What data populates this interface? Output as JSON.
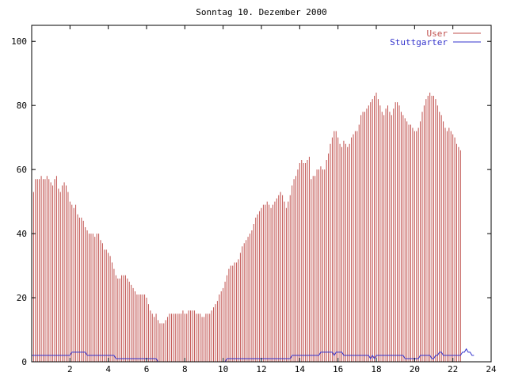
{
  "chart_data": {
    "type": "bar",
    "title": "Sonntag 10. Dezember 2000",
    "xlabel": "",
    "ylabel": "",
    "xlim": [
      0,
      24
    ],
    "ylim": [
      0,
      105
    ],
    "x_ticks": [
      "2",
      "4",
      "6",
      "8",
      "10",
      "12",
      "14",
      "16",
      "18",
      "20",
      "22",
      "24"
    ],
    "y_ticks": [
      "0",
      "20",
      "40",
      "60",
      "80",
      "100"
    ],
    "grid": false,
    "legend_position": "top-right",
    "interval_hours": 0.1,
    "series": [
      {
        "name": "User",
        "kind": "impulse",
        "color": "#c0504d",
        "values": [
          53,
          53,
          57,
          57,
          57,
          58,
          57,
          57,
          58,
          57,
          56,
          55,
          57,
          58,
          54,
          53,
          55,
          56,
          55,
          53,
          50,
          49,
          48,
          49,
          46,
          45,
          45,
          44,
          42,
          41,
          40,
          40,
          40,
          39,
          40,
          40,
          38,
          37,
          35,
          35,
          34,
          33,
          31,
          29,
          27,
          26,
          26,
          27,
          27,
          27,
          26,
          25,
          24,
          23,
          22,
          21,
          21,
          21,
          21,
          21,
          20,
          18,
          16,
          15,
          14,
          15,
          13,
          12,
          12,
          12,
          13,
          14,
          15,
          15,
          15,
          15,
          15,
          15,
          15,
          16,
          15,
          15,
          16,
          16,
          16,
          16,
          15,
          15,
          15,
          14,
          14,
          15,
          15,
          15,
          16,
          17,
          18,
          19,
          21,
          22,
          23,
          25,
          27,
          29,
          30,
          30,
          31,
          31,
          32,
          34,
          36,
          37,
          38,
          39,
          40,
          41,
          43,
          45,
          46,
          47,
          48,
          49,
          49,
          50,
          49,
          48,
          49,
          50,
          51,
          52,
          53,
          52,
          50,
          48,
          50,
          52,
          55,
          57,
          58,
          60,
          62,
          63,
          62,
          62,
          63,
          64,
          57,
          58,
          58,
          60,
          60,
          61,
          60,
          60,
          63,
          65,
          68,
          70,
          72,
          72,
          70,
          68,
          67,
          69,
          68,
          67,
          68,
          70,
          71,
          72,
          72,
          74,
          77,
          78,
          78,
          79,
          80,
          81,
          82,
          83,
          84,
          82,
          80,
          78,
          77,
          79,
          80,
          78,
          77,
          79,
          81,
          81,
          80,
          78,
          77,
          76,
          75,
          74,
          74,
          73,
          72,
          72,
          73,
          75,
          78,
          80,
          82,
          83,
          84,
          83,
          83,
          82,
          80,
          78,
          77,
          75,
          73,
          72,
          73,
          72,
          71,
          70,
          68,
          67,
          66
        ]
      },
      {
        "name": "Stuttgarter",
        "kind": "line",
        "color": "#3333cc",
        "values": [
          2,
          2,
          2,
          2,
          2,
          2,
          2,
          2,
          2,
          2,
          2,
          2,
          2,
          2,
          2,
          2,
          2,
          2,
          2,
          2,
          2,
          3,
          3,
          3,
          3,
          3,
          3,
          3,
          3,
          2,
          2,
          2,
          2,
          2,
          2,
          2,
          2,
          2,
          2,
          2,
          2,
          2,
          2,
          2,
          1,
          1,
          1,
          1,
          1,
          1,
          1,
          1,
          1,
          1,
          1,
          1,
          1,
          1,
          1,
          1,
          1,
          1,
          1,
          1,
          1,
          1,
          0,
          0,
          0,
          0,
          0,
          0,
          0,
          0,
          0,
          0,
          0,
          0,
          0,
          0,
          0,
          0,
          0,
          0,
          0,
          0,
          0,
          0,
          0,
          0,
          0,
          0,
          0,
          0,
          0,
          0,
          0,
          0,
          0,
          0,
          0,
          0,
          1,
          1,
          1,
          1,
          1,
          1,
          1,
          1,
          1,
          1,
          1,
          1,
          1,
          1,
          1,
          1,
          1,
          1,
          1,
          1,
          1,
          1,
          1,
          1,
          1,
          1,
          1,
          1,
          1,
          1,
          1,
          1,
          1,
          1,
          2,
          2,
          2,
          2,
          2,
          2,
          2,
          2,
          2,
          2,
          2,
          2,
          2,
          2,
          2,
          3,
          3,
          3,
          3,
          3,
          3,
          3,
          2,
          3,
          3,
          3,
          3,
          2,
          2,
          2,
          2,
          2,
          2,
          2,
          2,
          2,
          2,
          2,
          2,
          2,
          2,
          1,
          2,
          1,
          2,
          2,
          2,
          2,
          2,
          2,
          2,
          2,
          2,
          2,
          2,
          2,
          2,
          2,
          2,
          1,
          1,
          1,
          1,
          1,
          1,
          1,
          1,
          2,
          2,
          2,
          2,
          2,
          2,
          1,
          1,
          2,
          2,
          3,
          3,
          2,
          2,
          2,
          2,
          2,
          2,
          2,
          2,
          2,
          2,
          3,
          3,
          4,
          3,
          3,
          2,
          2
        ]
      }
    ]
  }
}
